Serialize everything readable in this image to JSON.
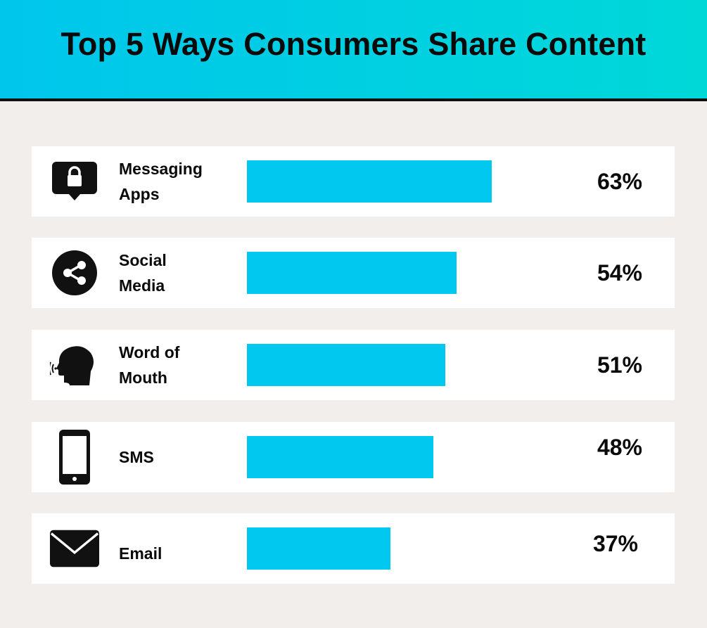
{
  "header": {
    "title": "Top 5 Ways Consumers Share Content"
  },
  "rows": [
    {
      "label": "Messaging\nApps",
      "value_label": "63%",
      "icon": "chat-lock-icon"
    },
    {
      "label": "Social\nMedia",
      "value_label": "54%",
      "icon": "share-icon"
    },
    {
      "label": "Word of\nMouth",
      "value_label": "51%",
      "icon": "speaking-head-icon"
    },
    {
      "label": "SMS",
      "value_label": "48%",
      "icon": "smartphone-icon"
    },
    {
      "label": "Email",
      "value_label": "37%",
      "icon": "envelope-icon"
    }
  ],
  "chart_data": {
    "type": "bar",
    "orientation": "horizontal",
    "title": "Top 5 Ways Consumers Share Content",
    "categories": [
      "Messaging Apps",
      "Social Media",
      "Word of Mouth",
      "SMS",
      "Email"
    ],
    "values": [
      63,
      54,
      51,
      48,
      37
    ],
    "unit": "%",
    "xlim": [
      0,
      100
    ],
    "grid": false,
    "legend": "none"
  },
  "colors": {
    "bar": "#00c8ee",
    "header_start": "#00c6ec",
    "header_end": "#00d8d8",
    "background": "#f1eeec",
    "row_background": "#ffffff",
    "text": "#0a0a0a"
  }
}
